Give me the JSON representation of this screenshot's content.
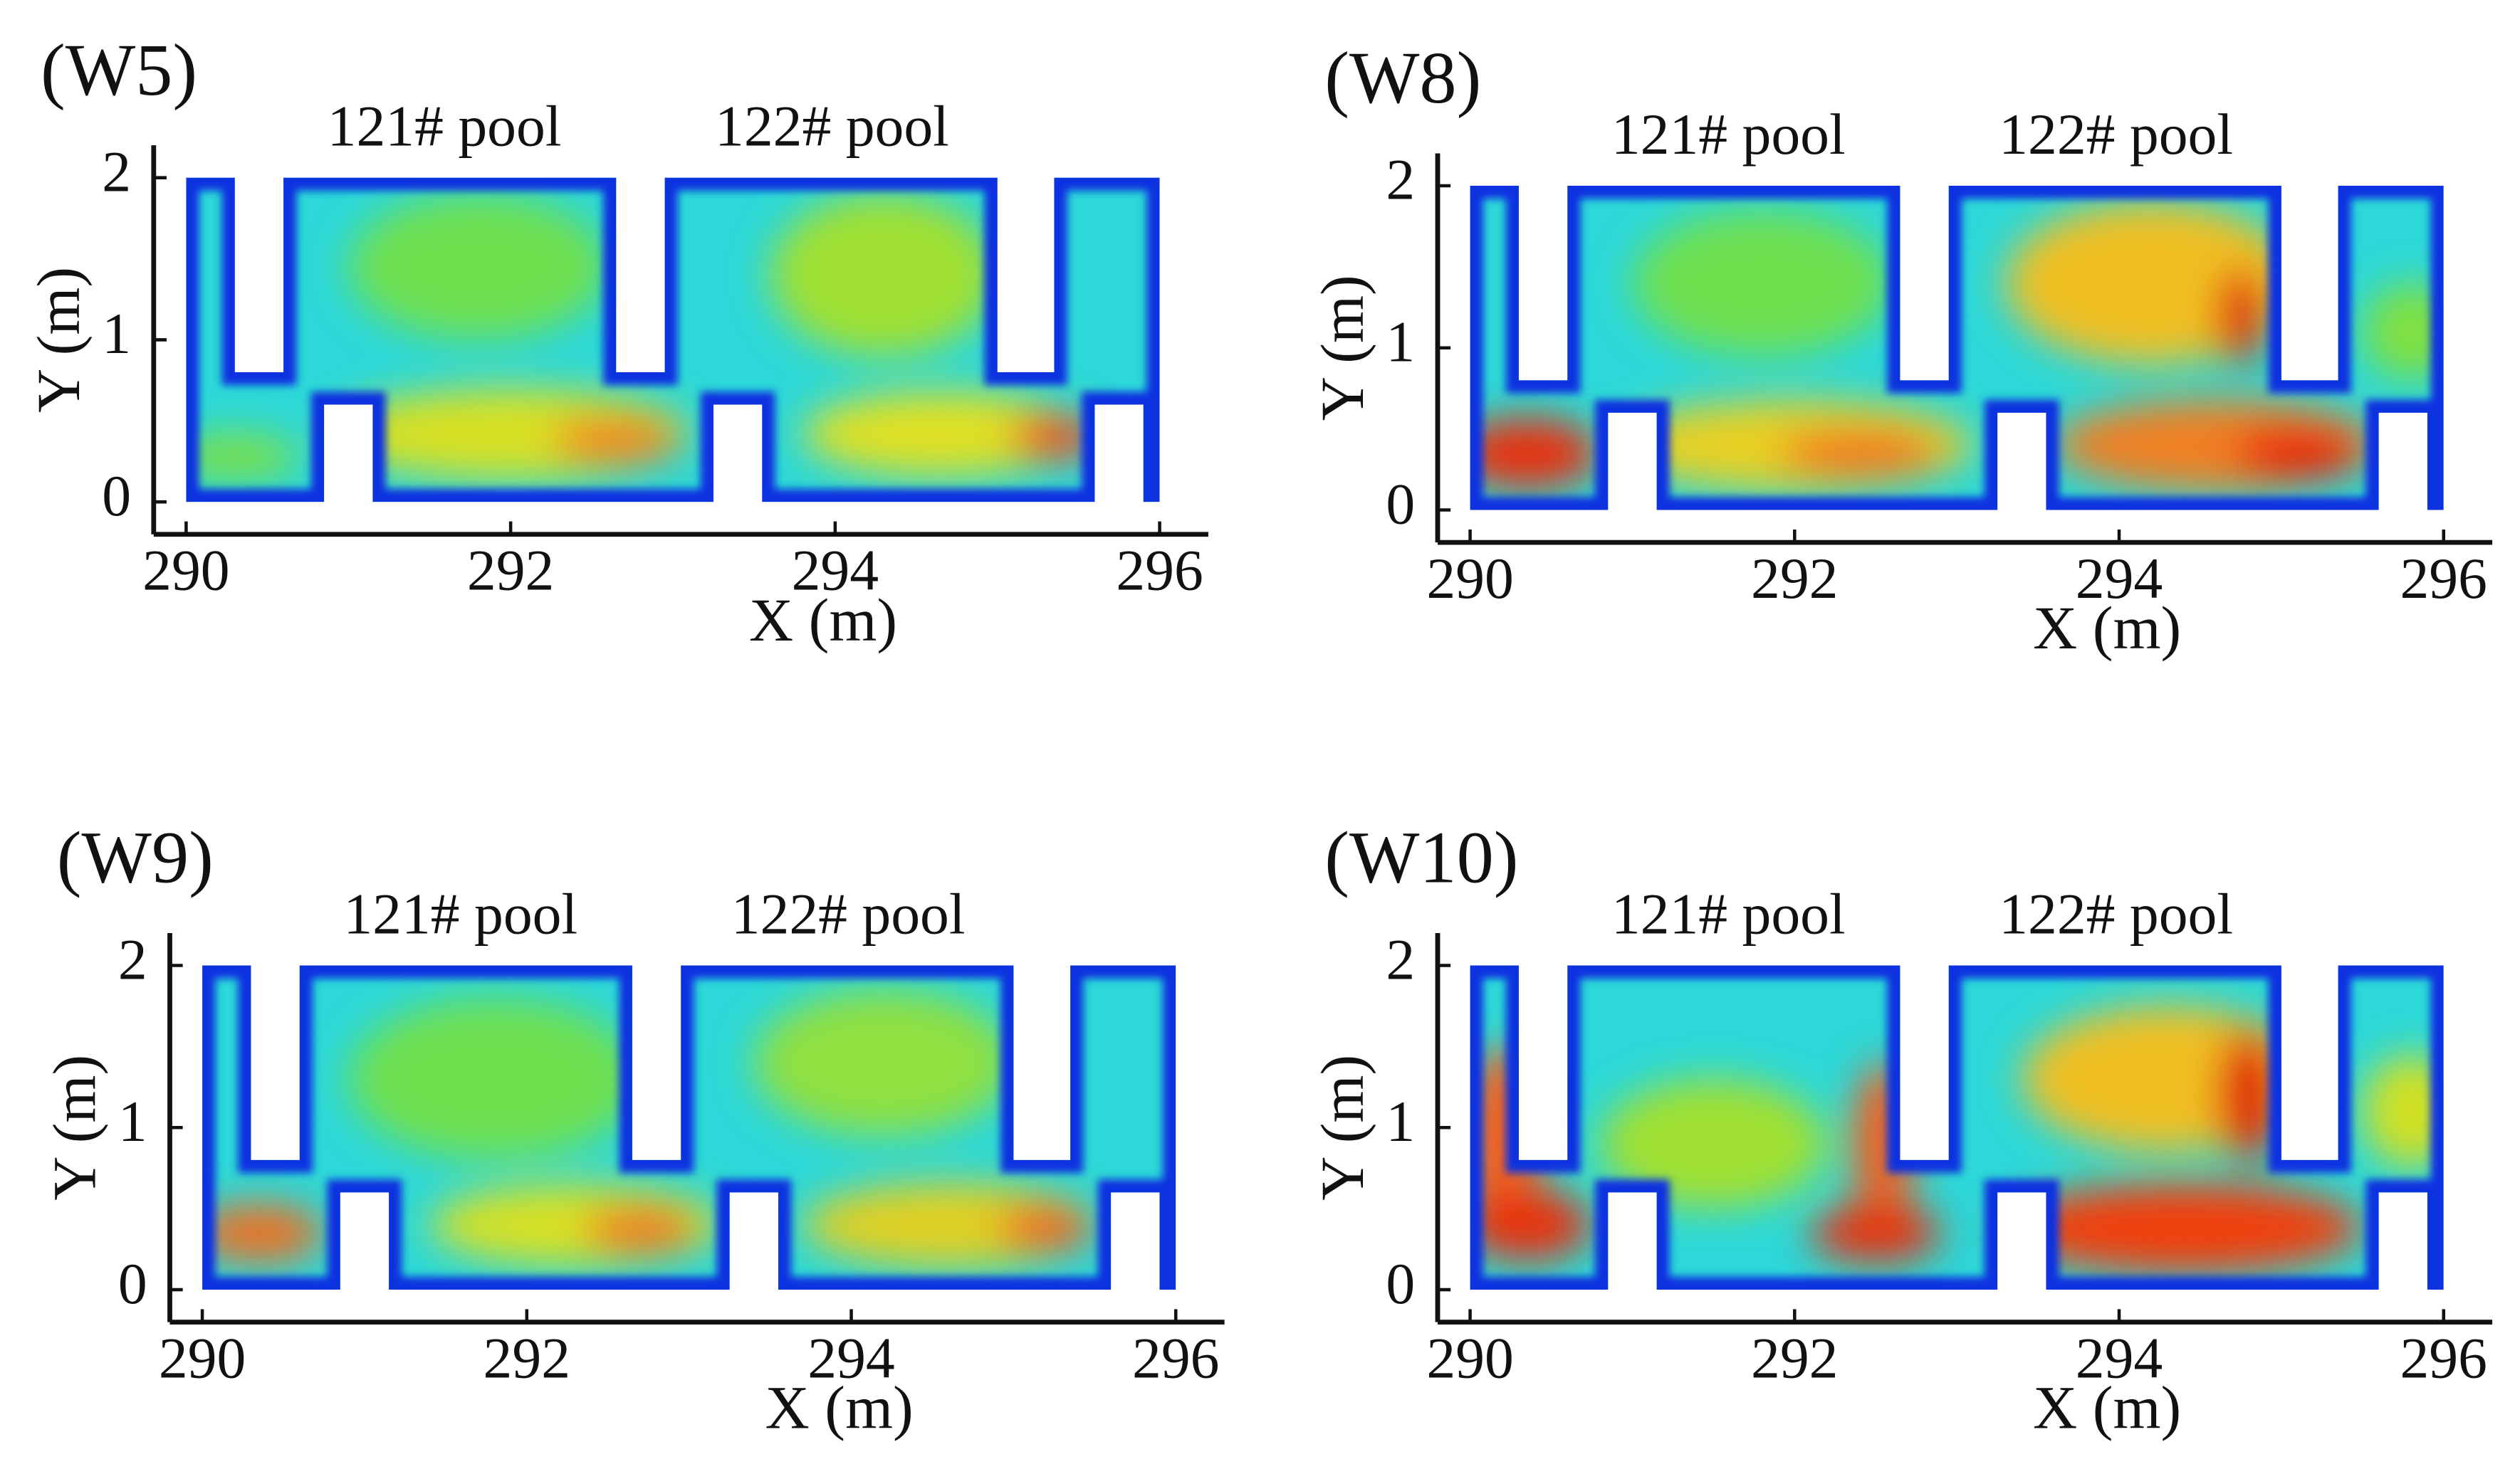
{
  "chart_data": [
    {
      "type": "heatmap",
      "title": "(W5)",
      "annotations": [
        "121# pool",
        "122# pool"
      ],
      "xlabel": "X (m)",
      "ylabel": "Y (m)",
      "xlim": [
        289.8,
        296.3
      ],
      "ylim": [
        -0.2,
        2.2
      ],
      "xticks": [
        290,
        292,
        294,
        296
      ],
      "yticks": [
        0,
        1,
        2
      ]
    },
    {
      "type": "heatmap",
      "title": "(W8)",
      "annotations": [
        "121# pool",
        "122# pool"
      ],
      "xlabel": "X (m)",
      "ylabel": "Y (m)",
      "xlim": [
        289.8,
        296.3
      ],
      "ylim": [
        -0.2,
        2.2
      ],
      "xticks": [
        290,
        292,
        294,
        296
      ],
      "yticks": [
        0,
        1,
        2
      ]
    },
    {
      "type": "heatmap",
      "title": "(W9)",
      "annotations": [
        "121# pool",
        "122# pool"
      ],
      "xlabel": "X (m)",
      "ylabel": "Y (m)",
      "xlim": [
        289.8,
        296.3
      ],
      "ylim": [
        -0.2,
        2.2
      ],
      "xticks": [
        290,
        292,
        294,
        296
      ],
      "yticks": [
        0,
        1,
        2
      ]
    },
    {
      "type": "heatmap",
      "title": "(W10)",
      "annotations": [
        "121# pool",
        "122# pool"
      ],
      "xlabel": "X (m)",
      "ylabel": "Y (m)",
      "xlim": [
        289.8,
        296.3
      ],
      "ylim": [
        -0.2,
        2.2
      ],
      "xticks": [
        290,
        292,
        294,
        296
      ],
      "yticks": [
        0,
        1,
        2
      ]
    }
  ]
}
